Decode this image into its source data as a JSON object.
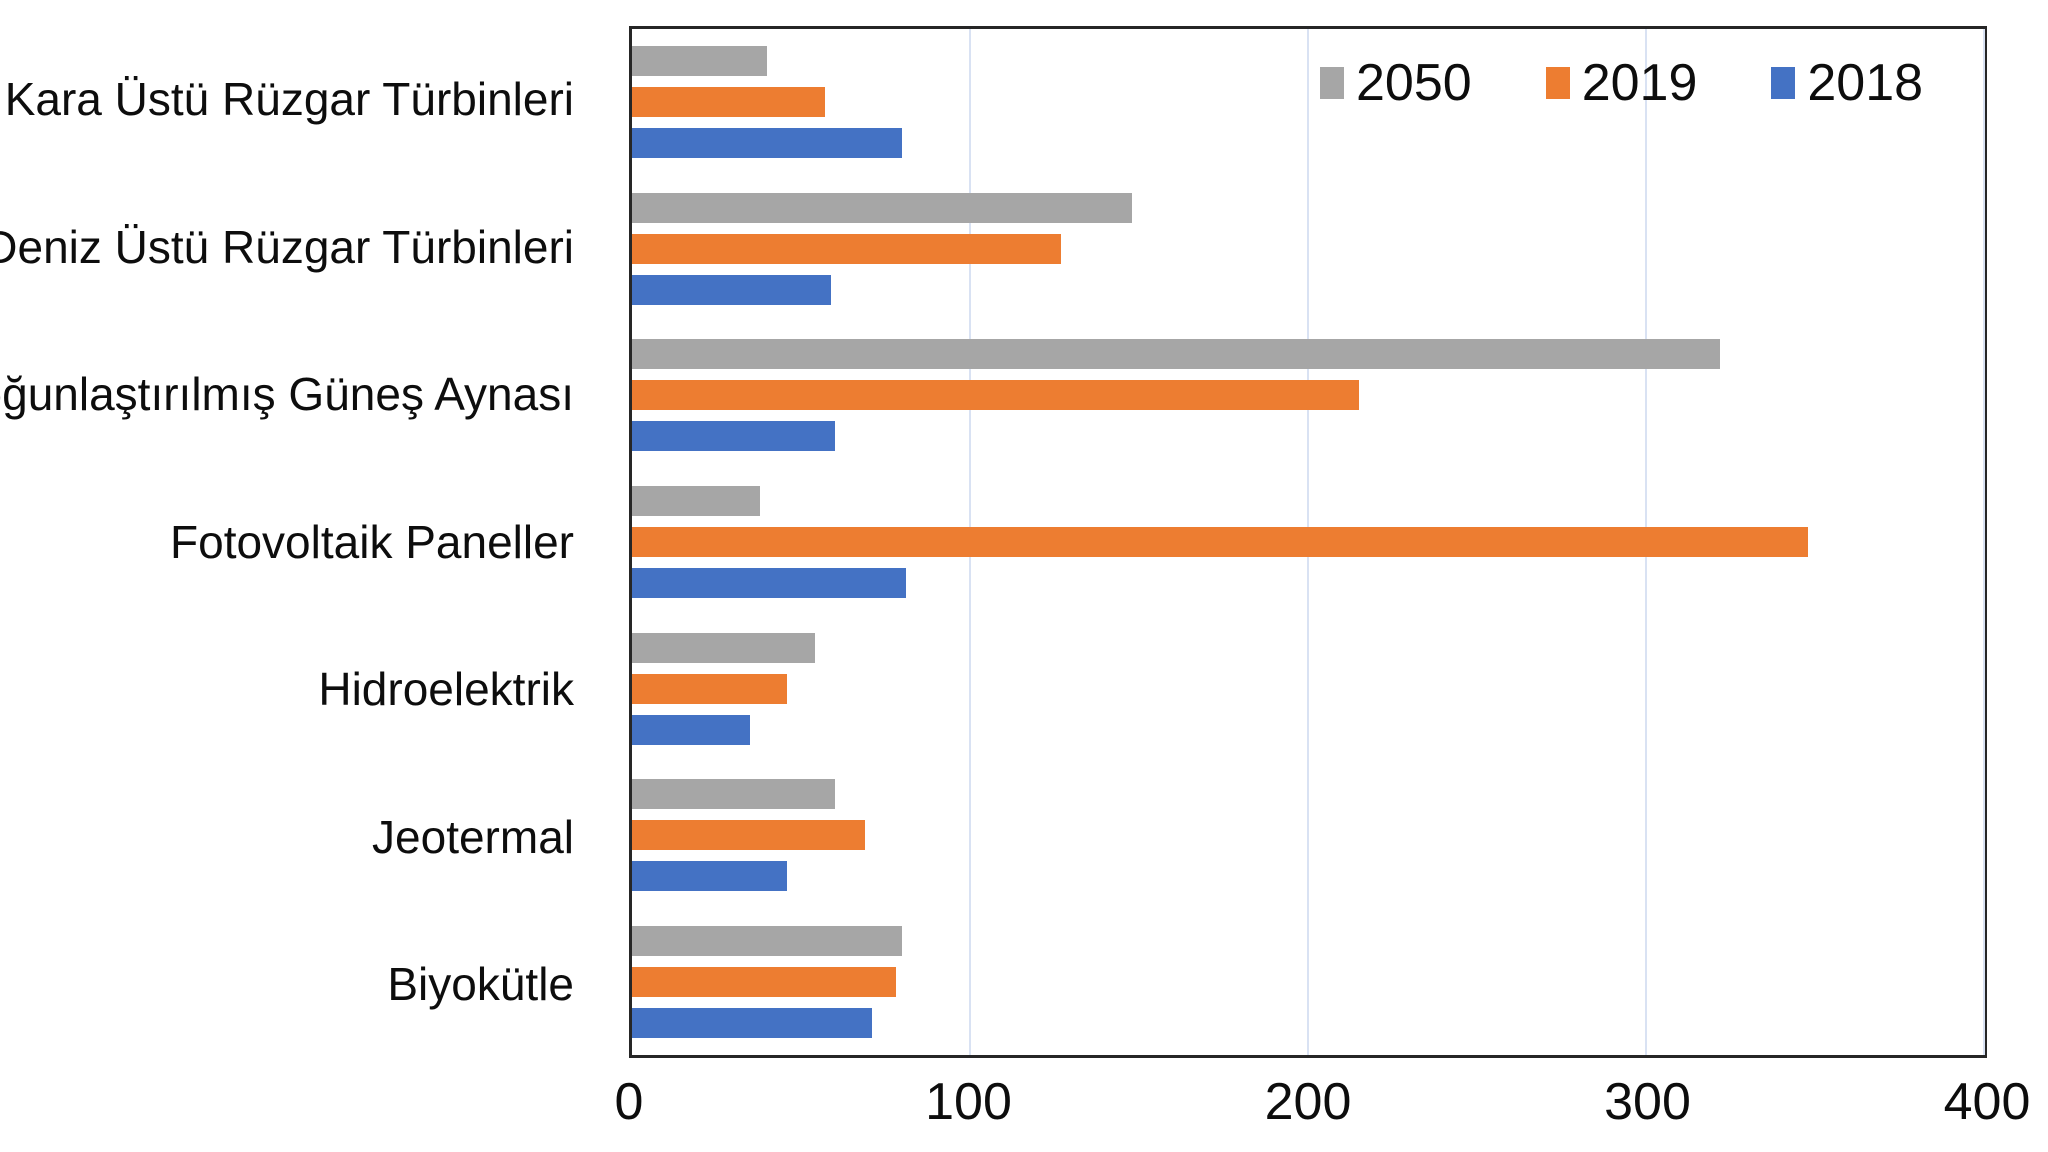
{
  "chart_data": {
    "type": "bar",
    "orientation": "horizontal",
    "title": "",
    "xlabel": "",
    "ylabel": "",
    "categories": [
      "Kara Üstü Rüzgar Türbinleri",
      "Deniz Üstü Rüzgar Türbinleri",
      "Yoğunlaştırılmış Güneş Aynası",
      "Fotovoltaik Paneller",
      "Hidroelektrik",
      "Jeotermal",
      "Biyokütle"
    ],
    "series": [
      {
        "name": "2050",
        "color": "#A6A6A6",
        "values": [
          40,
          148,
          322,
          38,
          54,
          60,
          80
        ]
      },
      {
        "name": "2019",
        "color": "#ED7D31",
        "values": [
          57,
          127,
          215,
          348,
          46,
          69,
          78
        ]
      },
      {
        "name": "2018",
        "color": "#4472C4",
        "values": [
          80,
          59,
          60,
          81,
          35,
          46,
          71
        ]
      }
    ],
    "bar_order_top_to_bottom": [
      "2050",
      "2019",
      "2018"
    ],
    "xlim": [
      0,
      400
    ],
    "x_ticks": [
      "0",
      "100",
      "200",
      "300",
      "400"
    ],
    "grid": true,
    "legend_position": "top-right-inside"
  },
  "style": {
    "gridline_color": "#D9E2F3",
    "plot_border_color": "#262626",
    "background_color": "#FFFFFF",
    "text_color": "#000000"
  }
}
